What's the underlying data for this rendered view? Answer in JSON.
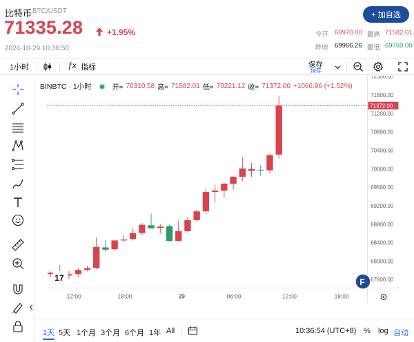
{
  "header": {
    "name": "比特币",
    "symbol": "BTC/USDT",
    "price": "71335.28",
    "change": "+1.95%",
    "timestamp": "2024-10-29 10:36:50",
    "add_button": "+ 加自选",
    "stats": {
      "open_label": "今开",
      "open_value": "69970.00",
      "prev_label": "昨收",
      "prev_value": "69966.26",
      "high_label": "最高",
      "high_value": "71582.01",
      "low_label": "最低",
      "low_value": "69760.00"
    }
  },
  "toolbar": {
    "interval": "1小时",
    "indicators": "指标",
    "save": "保存",
    "save_sub": "保存"
  },
  "legend": {
    "symbol": "BINBTC · 1小时",
    "open_k": "开=",
    "open_v": "70310.58",
    "high_k": "高=",
    "high_v": "71582.01",
    "low_k": "低=",
    "low_v": "70221.12",
    "close_k": "收=",
    "close_v": "71372.00",
    "change_v": "+1066.96 (+1.52%)"
  },
  "chart_data": {
    "type": "candlestick",
    "x_tick_labels": [
      "12:00",
      "18:00",
      "29",
      "06:00",
      "12:00",
      "18:00"
    ],
    "y_tick_labels": [
      "72000.00",
      "71600.00",
      "71200.00",
      "70800.00",
      "70400.00",
      "70000.00",
      "69600.00",
      "69200.00",
      "68800.00",
      "68400.00",
      "68000.00",
      "67600.00"
    ],
    "ylim": [
      67420,
      72020
    ],
    "last_price_label": "71372.00",
    "colors": {
      "up": "#d9434e",
      "down": "#2e9a6f"
    },
    "candles": [
      {
        "o": 67720,
        "h": 67780,
        "l": 67660,
        "c": 67750
      },
      {
        "o": 67740,
        "h": 67920,
        "l": 67640,
        "c": 67700
      },
      {
        "o": 67690,
        "h": 67790,
        "l": 67620,
        "c": 67720
      },
      {
        "o": 67720,
        "h": 67860,
        "l": 67650,
        "c": 67810
      },
      {
        "o": 67810,
        "h": 67900,
        "l": 67780,
        "c": 67850
      },
      {
        "o": 67850,
        "h": 68510,
        "l": 67830,
        "c": 68310
      },
      {
        "o": 68300,
        "h": 68460,
        "l": 68200,
        "c": 68250
      },
      {
        "o": 68260,
        "h": 68460,
        "l": 68230,
        "c": 68450
      },
      {
        "o": 68450,
        "h": 68560,
        "l": 68420,
        "c": 68470
      },
      {
        "o": 68480,
        "h": 68720,
        "l": 68450,
        "c": 68610
      },
      {
        "o": 68610,
        "h": 68830,
        "l": 68560,
        "c": 68790
      },
      {
        "o": 68780,
        "h": 69030,
        "l": 68720,
        "c": 68710
      },
      {
        "o": 68720,
        "h": 68800,
        "l": 68600,
        "c": 68750
      },
      {
        "o": 68760,
        "h": 68790,
        "l": 68420,
        "c": 68440
      },
      {
        "o": 68440,
        "h": 68880,
        "l": 68420,
        "c": 68650
      },
      {
        "o": 68650,
        "h": 68950,
        "l": 68620,
        "c": 68890
      },
      {
        "o": 68890,
        "h": 69120,
        "l": 68850,
        "c": 69080
      },
      {
        "o": 69080,
        "h": 69580,
        "l": 69020,
        "c": 69500
      },
      {
        "o": 69500,
        "h": 69660,
        "l": 69280,
        "c": 69530
      },
      {
        "o": 69530,
        "h": 69700,
        "l": 69380,
        "c": 69680
      },
      {
        "o": 69680,
        "h": 69840,
        "l": 69550,
        "c": 69830
      },
      {
        "o": 69830,
        "h": 70260,
        "l": 69740,
        "c": 70010
      },
      {
        "o": 69960,
        "h": 70120,
        "l": 69830,
        "c": 70000
      },
      {
        "o": 69980,
        "h": 70080,
        "l": 69850,
        "c": 69970
      },
      {
        "o": 69970,
        "h": 70330,
        "l": 69900,
        "c": 70300
      },
      {
        "o": 70310,
        "h": 71582,
        "l": 70221,
        "c": 71372
      }
    ]
  },
  "bottom": {
    "ranges": [
      "1天",
      "5天",
      "1个月",
      "3个月",
      "6个月",
      "1年",
      "All"
    ],
    "active_range": "1天",
    "time": "10:36:54 (UTC+8)",
    "percent": "%",
    "log": "log",
    "auto": "自动"
  }
}
